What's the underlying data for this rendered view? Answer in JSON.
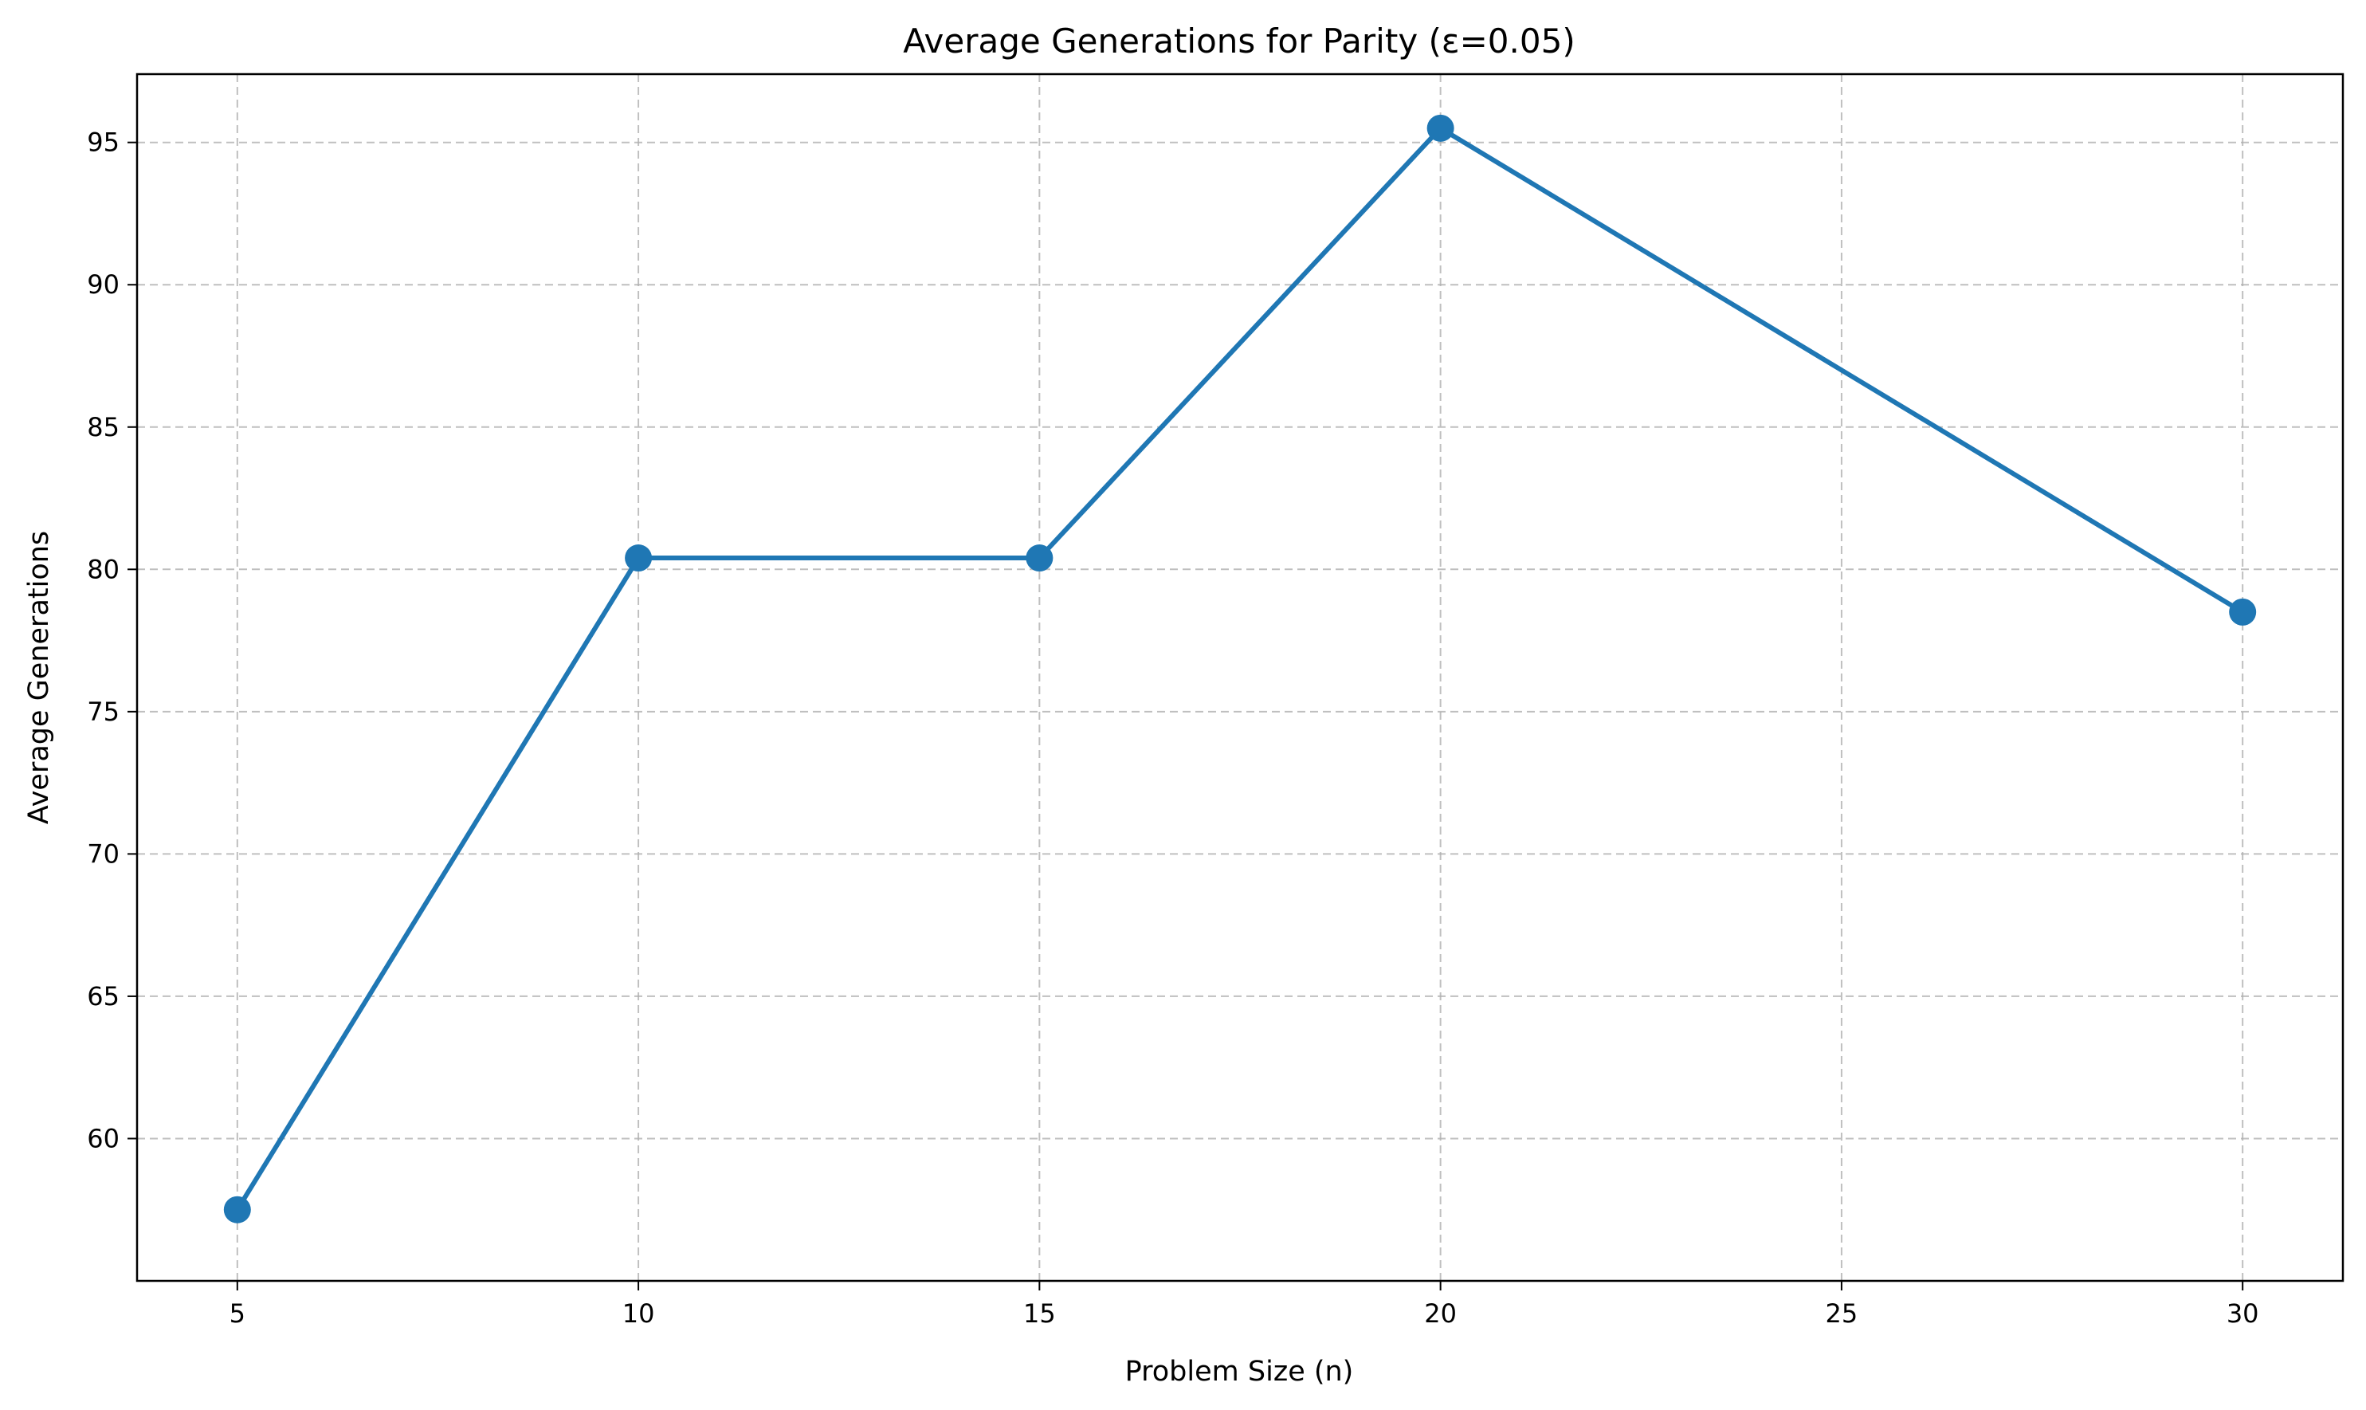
{
  "chart_data": {
    "type": "line",
    "title": "Average Generations for Parity (ε=0.05)",
    "xlabel": "Problem Size (n)",
    "ylabel": "Average Generations",
    "xlim": [
      3.75,
      31.25
    ],
    "ylim": [
      55.0,
      97.4
    ],
    "xticks": [
      5,
      10,
      15,
      20,
      25,
      30
    ],
    "yticks": [
      60,
      65,
      70,
      75,
      80,
      85,
      90,
      95
    ],
    "grid": true,
    "series": [
      {
        "color": "#1f77b4",
        "marker": "circle",
        "points": [
          {
            "x": 5,
            "y": 57.5
          },
          {
            "x": 10,
            "y": 80.4
          },
          {
            "x": 15,
            "y": 80.4
          },
          {
            "x": 20,
            "y": 95.5
          },
          {
            "x": 30,
            "y": 78.5
          }
        ]
      }
    ]
  }
}
